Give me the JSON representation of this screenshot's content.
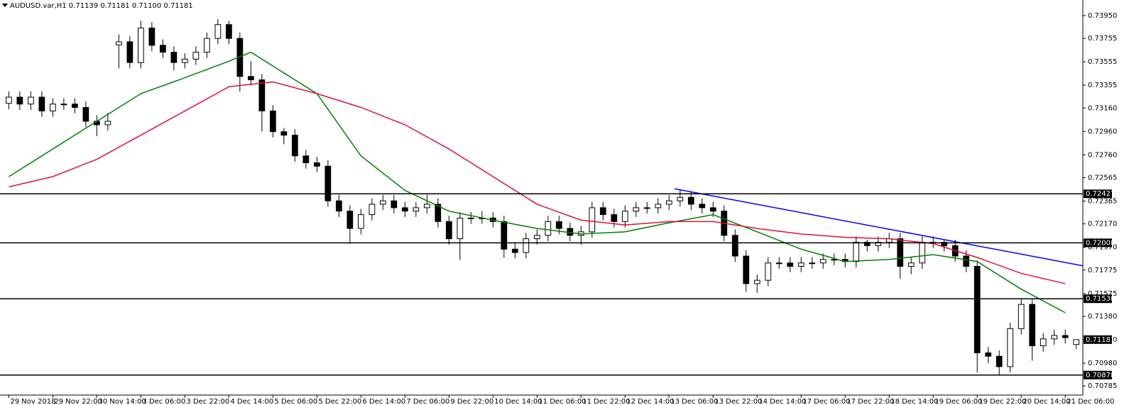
{
  "chart_data": {
    "type": "candlestick",
    "title": "AUDUSD.var,H1  0.71139 0.71181 0.71100 0.71181",
    "bull_color": "#ffffff",
    "bear_color": "#000000",
    "outline_color": "#000000",
    "candles": [
      [
        0.732,
        0.73303,
        0.7315,
        0.73253
      ],
      [
        0.73253,
        0.73303,
        0.73144,
        0.73194
      ],
      [
        0.73194,
        0.73303,
        0.73144,
        0.73253
      ],
      [
        0.73253,
        0.73303,
        0.73085,
        0.73135
      ],
      [
        0.73135,
        0.73244,
        0.73085,
        0.73194
      ],
      [
        0.73194,
        0.73244,
        0.73144,
        0.73194
      ],
      [
        0.73194,
        0.73244,
        0.73115,
        0.73165
      ],
      [
        0.73165,
        0.73215,
        0.72997,
        0.73047
      ],
      [
        0.73047,
        0.73097,
        0.7292,
        0.73017
      ],
      [
        0.73017,
        0.7312,
        0.72967,
        0.73047
      ],
      [
        0.737,
        0.7379,
        0.735,
        0.73726
      ],
      [
        0.73726,
        0.73776,
        0.73499,
        0.73549
      ],
      [
        0.73549,
        0.73905,
        0.73499,
        0.73844
      ],
      [
        0.73844,
        0.73894,
        0.73646,
        0.73696
      ],
      [
        0.73696,
        0.73746,
        0.73587,
        0.73637
      ],
      [
        0.73637,
        0.73687,
        0.7348,
        0.73549
      ],
      [
        0.73549,
        0.73628,
        0.73499,
        0.73578
      ],
      [
        0.73578,
        0.73687,
        0.73528,
        0.73637
      ],
      [
        0.73637,
        0.73805,
        0.73587,
        0.73755
      ],
      [
        0.73755,
        0.7392,
        0.73705,
        0.73873
      ],
      [
        0.73873,
        0.73905,
        0.73705,
        0.73755
      ],
      [
        0.73755,
        0.73805,
        0.733,
        0.7343
      ],
      [
        0.7343,
        0.7356,
        0.73351,
        0.73401
      ],
      [
        0.73401,
        0.73451,
        0.7296,
        0.73135
      ],
      [
        0.73135,
        0.73185,
        0.72908,
        0.72958
      ],
      [
        0.72958,
        0.7299,
        0.7285,
        0.72928
      ],
      [
        0.72928,
        0.72978,
        0.72701,
        0.72751
      ],
      [
        0.72751,
        0.72801,
        0.72642,
        0.72692
      ],
      [
        0.72692,
        0.72742,
        0.72613,
        0.72663
      ],
      [
        0.72663,
        0.72713,
        0.72317,
        0.72367
      ],
      [
        0.72367,
        0.72417,
        0.72229,
        0.72279
      ],
      [
        0.72279,
        0.72329,
        0.72,
        0.72131
      ],
      [
        0.72131,
        0.72299,
        0.72081,
        0.72249
      ],
      [
        0.72249,
        0.72388,
        0.72199,
        0.72338
      ],
      [
        0.72338,
        0.72417,
        0.72288,
        0.72367
      ],
      [
        0.72367,
        0.72417,
        0.72258,
        0.72308
      ],
      [
        0.72308,
        0.72358,
        0.72229,
        0.72279
      ],
      [
        0.72279,
        0.72358,
        0.72229,
        0.72308
      ],
      [
        0.72308,
        0.7242,
        0.72258,
        0.72338
      ],
      [
        0.72338,
        0.72388,
        0.7214,
        0.7219
      ],
      [
        0.7219,
        0.7224,
        0.71993,
        0.72043
      ],
      [
        0.72043,
        0.7227,
        0.7186,
        0.7222
      ],
      [
        0.7222,
        0.7227,
        0.7217,
        0.7222
      ],
      [
        0.7222,
        0.7228,
        0.7217,
        0.7222
      ],
      [
        0.7222,
        0.7227,
        0.7214,
        0.7219
      ],
      [
        0.7219,
        0.7224,
        0.7188,
        0.71954
      ],
      [
        0.71954,
        0.72004,
        0.71875,
        0.71925
      ],
      [
        0.71925,
        0.72093,
        0.71875,
        0.72043
      ],
      [
        0.72043,
        0.72122,
        0.71993,
        0.72072
      ],
      [
        0.72072,
        0.7224,
        0.72022,
        0.7219
      ],
      [
        0.7219,
        0.7224,
        0.72081,
        0.72131
      ],
      [
        0.72131,
        0.72181,
        0.72022,
        0.72072
      ],
      [
        0.72072,
        0.72152,
        0.7199,
        0.72102
      ],
      [
        0.72102,
        0.72358,
        0.72052,
        0.72308
      ],
      [
        0.72308,
        0.72358,
        0.72199,
        0.72249
      ],
      [
        0.72249,
        0.72299,
        0.7214,
        0.7219
      ],
      [
        0.7219,
        0.72329,
        0.7214,
        0.72279
      ],
      [
        0.72279,
        0.72358,
        0.72229,
        0.72308
      ],
      [
        0.72308,
        0.72358,
        0.72258,
        0.72308
      ],
      [
        0.72308,
        0.72388,
        0.72258,
        0.72338
      ],
      [
        0.72338,
        0.72417,
        0.72288,
        0.72367
      ],
      [
        0.72367,
        0.7246,
        0.72317,
        0.72397
      ],
      [
        0.72397,
        0.72447,
        0.72288,
        0.72338
      ],
      [
        0.72338,
        0.72388,
        0.72258,
        0.72308
      ],
      [
        0.72308,
        0.72358,
        0.72229,
        0.72279
      ],
      [
        0.72279,
        0.72329,
        0.72022,
        0.72072
      ],
      [
        0.72072,
        0.72122,
        0.71845,
        0.71895
      ],
      [
        0.71895,
        0.71945,
        0.7159,
        0.71659
      ],
      [
        0.71659,
        0.71738,
        0.7158,
        0.71688
      ],
      [
        0.71688,
        0.71886,
        0.71638,
        0.71836
      ],
      [
        0.71836,
        0.71886,
        0.71786,
        0.71836
      ],
      [
        0.71836,
        0.71886,
        0.71757,
        0.71807
      ],
      [
        0.71807,
        0.71886,
        0.71757,
        0.71836
      ],
      [
        0.71836,
        0.71886,
        0.71786,
        0.71836
      ],
      [
        0.71836,
        0.71916,
        0.71786,
        0.71866
      ],
      [
        0.71866,
        0.71916,
        0.71816,
        0.71866
      ],
      [
        0.71866,
        0.71916,
        0.71798,
        0.71848
      ],
      [
        0.71848,
        0.72063,
        0.71798,
        0.72013
      ],
      [
        0.72013,
        0.72034,
        0.71934,
        0.71984
      ],
      [
        0.71984,
        0.72063,
        0.71934,
        0.72013
      ],
      [
        0.72013,
        0.72093,
        0.71963,
        0.72043
      ],
      [
        0.72043,
        0.72093,
        0.717,
        0.71807
      ],
      [
        0.71807,
        0.71886,
        0.7174,
        0.71836
      ],
      [
        0.71836,
        0.72063,
        0.71786,
        0.72013
      ],
      [
        0.72013,
        0.72063,
        0.71963,
        0.72013
      ],
      [
        0.72013,
        0.72034,
        0.71934,
        0.71984
      ],
      [
        0.71984,
        0.72034,
        0.71845,
        0.71895
      ],
      [
        0.71895,
        0.71945,
        0.71757,
        0.71807
      ],
      [
        0.71807,
        0.71857,
        0.709,
        0.71068
      ],
      [
        0.71068,
        0.71118,
        0.7098,
        0.71039
      ],
      [
        0.71039,
        0.71089,
        0.70878,
        0.7095
      ],
      [
        0.7095,
        0.71325,
        0.709,
        0.71275
      ],
      [
        0.71275,
        0.71532,
        0.71225,
        0.71482
      ],
      [
        0.71482,
        0.71532,
        0.71,
        0.71128
      ],
      [
        0.71128,
        0.71237,
        0.71078,
        0.71187
      ],
      [
        0.71187,
        0.71266,
        0.71137,
        0.71216
      ],
      [
        0.71216,
        0.71266,
        0.71148,
        0.71198
      ],
      [
        0.71139,
        0.71181,
        0.711,
        0.71181
      ]
    ],
    "lines": [
      {
        "color": "#008000",
        "x": [
          0,
          4,
          8,
          12,
          16,
          20,
          22,
          24,
          28,
          32,
          36,
          40,
          44,
          48,
          52,
          56,
          60,
          64,
          68,
          72,
          76,
          80,
          84,
          88,
          92,
          96
        ],
        "values": [
          0.72574,
          0.7281,
          0.73047,
          0.73283,
          0.73419,
          0.7356,
          0.73637,
          0.73519,
          0.73283,
          0.72751,
          0.72456,
          0.72279,
          0.72202,
          0.72131,
          0.72084,
          0.72102,
          0.72179,
          0.72249,
          0.72102,
          0.71954,
          0.71848,
          0.71866,
          0.71907,
          0.71848,
          0.71612,
          0.71411
        ]
      },
      {
        "color": "#e0103c",
        "x": [
          0,
          4,
          8,
          12,
          16,
          20,
          24,
          28,
          32,
          36,
          40,
          44,
          48,
          52,
          56,
          60,
          64,
          68,
          72,
          76,
          80,
          84,
          88,
          92,
          96
        ],
        "values": [
          0.72486,
          0.72574,
          0.72722,
          0.72928,
          0.73135,
          0.73342,
          0.73383,
          0.73283,
          0.73165,
          0.73017,
          0.7281,
          0.72574,
          0.72338,
          0.72202,
          0.72161,
          0.7219,
          0.7219,
          0.72131,
          0.72084,
          0.72055,
          0.72043,
          0.72001,
          0.71883,
          0.71747,
          0.71659
        ]
      }
    ],
    "trendline": {
      "color": "#0000ff",
      "x": [
        60.5,
        97.6
      ],
      "values": [
        0.7247,
        0.71812
      ]
    },
    "hlines": [
      0.72427,
      0.72008,
      {
        "value": 0.7153,
        "label": "0.71530"
      },
      0.70878
    ],
    "last_price": 0.71181,
    "xlim": [
      -0.8,
      97.6
    ],
    "xticks": [
      {
        "value": 0,
        "label": "29 Nov 2018"
      },
      {
        "value": 4,
        "label": "29 Nov 22:00"
      },
      {
        "value": 8,
        "label": "30 Nov 14:00"
      },
      {
        "value": 12,
        "label": "3 Dec 06:00"
      },
      {
        "value": 16,
        "label": "3 Dec 22:00"
      },
      {
        "value": 20,
        "label": "4 Dec 14:00"
      },
      {
        "value": 24,
        "label": "5 Dec 06:00"
      },
      {
        "value": 28,
        "label": "5 Dec 22:00"
      },
      {
        "value": 32,
        "label": "6 Dec 14:00"
      },
      {
        "value": 36,
        "label": "7 Dec 06:00"
      },
      {
        "value": 40,
        "label": "9 Dec 22:00"
      },
      {
        "value": 44,
        "label": "10 Dec 14:00"
      },
      {
        "value": 48,
        "label": "11 Dec 06:00"
      },
      {
        "value": 52,
        "label": "11 Dec 22:00"
      },
      {
        "value": 56,
        "label": "12 Dec 14:00"
      },
      {
        "value": 60,
        "label": "13 Dec 06:00"
      },
      {
        "value": 64,
        "label": "13 Dec 22:00"
      },
      {
        "value": 68,
        "label": "14 Dec 14:00"
      },
      {
        "value": 72,
        "label": "17 Dec 06:00"
      },
      {
        "value": 76,
        "label": "17 Dec 22:00"
      },
      {
        "value": 80,
        "label": "18 Dec 14:00"
      },
      {
        "value": 84,
        "label": "19 Dec 06:00"
      },
      {
        "value": 88,
        "label": "19 Dec 22:00"
      },
      {
        "value": 92,
        "label": "20 Dec 14:00"
      },
      {
        "value": 96,
        "label": "21 Dec 06:00"
      }
    ],
    "ylim": [
      0.70707,
      0.74059
    ],
    "yticks": [
      {
        "value": 0.7395,
        "label": "0.73950"
      },
      0.73755,
      0.73555,
      0.73355,
      {
        "value": 0.7316,
        "label": "0.73160"
      },
      {
        "value": 0.7296,
        "label": "0.72960"
      },
      {
        "value": 0.7276,
        "label": "0.72760"
      },
      0.72565,
      0.72365,
      {
        "value": 0.7217,
        "label": "0.72170"
      },
      {
        "value": 0.7197,
        "label": "0.71970"
      },
      0.71775,
      0.71575,
      {
        "value": 0.7138,
        "label": "0.71380"
      },
      {
        "value": 0.7118,
        "label": "0.71180"
      },
      {
        "value": 0.7098,
        "label": "0.70980"
      },
      0.70785
    ]
  }
}
